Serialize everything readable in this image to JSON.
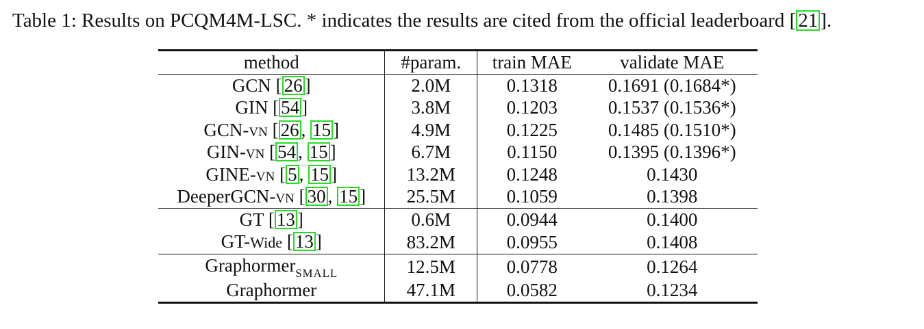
{
  "caption": {
    "prefix": "Table 1: Results on PCQM4M-LSC. *  indicates the results are cited from the official leaderboard [",
    "cite": "21",
    "suffix": "]."
  },
  "table": {
    "headers": {
      "method": "method",
      "param": "#param.",
      "train": "train MAE",
      "validate": "validate MAE"
    },
    "rows": [
      {
        "name": "GCN",
        "name_sc": "",
        "cite_pre": " [",
        "cites": [
          "26"
        ],
        "cite_post": "]",
        "param": "2.0M",
        "train": "0.1318",
        "validate": "0.1691 (0.1684*)"
      },
      {
        "name": "GIN",
        "name_sc": "",
        "cite_pre": " [",
        "cites": [
          "54"
        ],
        "cite_post": "]",
        "param": "3.8M",
        "train": "0.1203",
        "validate": "0.1537 (0.1536*)"
      },
      {
        "name": "GCN-",
        "name_sc": "vn",
        "cite_pre": "  [",
        "cites": [
          "26",
          "15"
        ],
        "cite_post": "]",
        "param": "4.9M",
        "train": "0.1225",
        "validate": "0.1485 (0.1510*)"
      },
      {
        "name": "GIN-",
        "name_sc": "vn",
        "cite_pre": " [",
        "cites": [
          "54",
          "15"
        ],
        "cite_post": "]",
        "param": "6.7M",
        "train": "0.1150",
        "validate": "0.1395 (0.1396*)"
      },
      {
        "name": "GINE-",
        "name_sc": "vn",
        "cite_pre": "  [",
        "cites": [
          "5",
          "15"
        ],
        "cite_post": "]",
        "param": "13.2M",
        "train": "0.1248",
        "validate": "0.1430"
      },
      {
        "name": "DeeperGCN-",
        "name_sc": "vn",
        "cite_pre": " [",
        "cites": [
          "30",
          "15"
        ],
        "cite_post": "]",
        "param": "25.5M",
        "train": "0.1059",
        "validate": "0.1398"
      },
      {
        "name": "GT",
        "name_sc": "",
        "cite_pre": " [",
        "cites": [
          "13"
        ],
        "cite_post": "]",
        "param": "0.6M",
        "train": "0.0944",
        "validate": "0.1400"
      },
      {
        "name": "GT-",
        "name_small": "Wide",
        "cite_pre": " [",
        "cites": [
          "13"
        ],
        "cite_post": "]",
        "param": "83.2M",
        "train": "0.0955",
        "validate": "0.1408"
      },
      {
        "name": "Graphormer",
        "name_sub": "SMALL",
        "param": "12.5M",
        "train": "0.0778",
        "validate": "0.1264"
      },
      {
        "name": "Graphormer",
        "param": "47.1M",
        "train": "0.0582",
        "validate": "0.1234"
      }
    ]
  }
}
